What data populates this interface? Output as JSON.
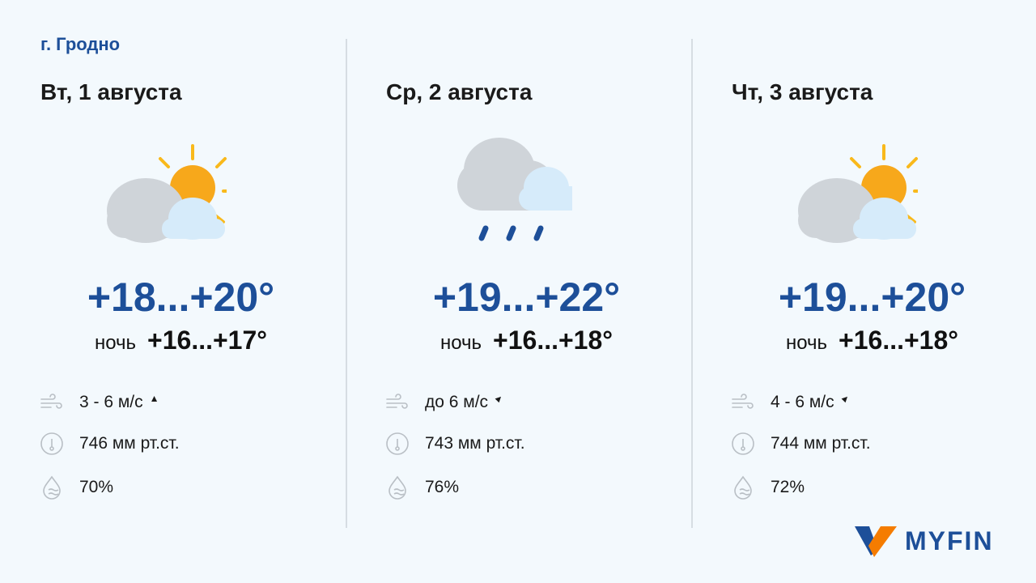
{
  "city": "г. Гродно",
  "days": [
    {
      "date": "Вт, 1 августа",
      "icon": "partly-cloudy-icon",
      "temp": "+18...+20°",
      "night_label": "ночь",
      "night": "+16...+17°",
      "wind": "3 - 6 м/с",
      "wind_direction": "north",
      "pressure": "746 мм рт.ст.",
      "humidity": "70%"
    },
    {
      "date": "Ср, 2 августа",
      "icon": "rain-cloud-icon",
      "temp": "+19...+22°",
      "night_label": "ночь",
      "night": "+16...+18°",
      "wind": "до 6 м/с",
      "wind_direction": "north-east",
      "pressure": "743 мм рт.ст.",
      "humidity": "76%"
    },
    {
      "date": "Чт, 3 августа",
      "icon": "partly-cloudy-icon",
      "temp": "+19...+20°",
      "night_label": "ночь",
      "night": "+16...+18°",
      "wind": "4 - 6 м/с",
      "wind_direction": "north-east",
      "pressure": "744 мм рт.ст.",
      "humidity": "72%"
    }
  ],
  "logo": "MYFIN",
  "colors": {
    "accent": "#1d4f99",
    "orange": "#f57c00",
    "sun": "#f9b91b"
  }
}
